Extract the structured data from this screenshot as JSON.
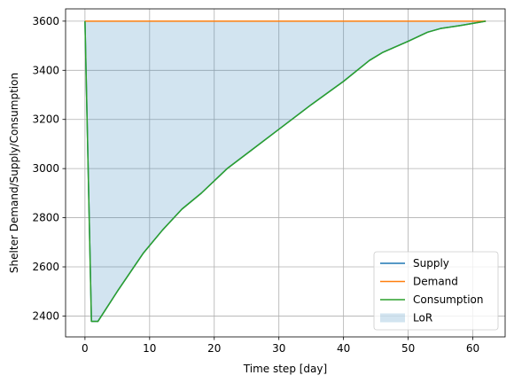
{
  "chart_data": {
    "type": "line",
    "title": "",
    "xlabel": "Time step [day]",
    "ylabel": "Shelter Demand/Supply/Consumption",
    "xlim": [
      -3,
      65
    ],
    "ylim": [
      2315,
      3650
    ],
    "xticks": [
      0,
      10,
      20,
      30,
      40,
      50,
      60
    ],
    "yticks": [
      2400,
      2600,
      2800,
      3000,
      3200,
      3400,
      3600
    ],
    "grid": true,
    "legend_position": "lower right",
    "series": [
      {
        "name": "Supply",
        "color": "#1f77b4",
        "x": [
          0,
          1,
          2,
          5,
          9,
          12,
          15,
          18,
          22,
          26,
          30,
          35,
          40,
          44,
          46,
          50,
          53,
          55,
          58,
          62
        ],
        "y": [
          3600,
          2378,
          2378,
          2500,
          2655,
          2750,
          2835,
          2900,
          3000,
          3080,
          3160,
          3260,
          3355,
          3440,
          3472,
          3518,
          3555,
          3570,
          3582,
          3600
        ]
      },
      {
        "name": "Demand",
        "color": "#ff7f0e",
        "x": [
          0,
          62
        ],
        "y": [
          3600,
          3600
        ]
      },
      {
        "name": "Consumption",
        "color": "#2ca02c",
        "x": [
          0,
          1,
          2,
          5,
          9,
          12,
          15,
          18,
          22,
          26,
          30,
          35,
          40,
          44,
          46,
          50,
          53,
          55,
          58,
          62
        ],
        "y": [
          3600,
          2378,
          2378,
          2500,
          2655,
          2750,
          2835,
          2900,
          3000,
          3080,
          3160,
          3260,
          3355,
          3440,
          3472,
          3518,
          3555,
          3570,
          3582,
          3600
        ]
      }
    ],
    "fill_between": {
      "name": "LoR",
      "color": "#1f77b4",
      "alpha": 0.2,
      "upper_series": "Demand",
      "lower_series": "Consumption"
    }
  }
}
